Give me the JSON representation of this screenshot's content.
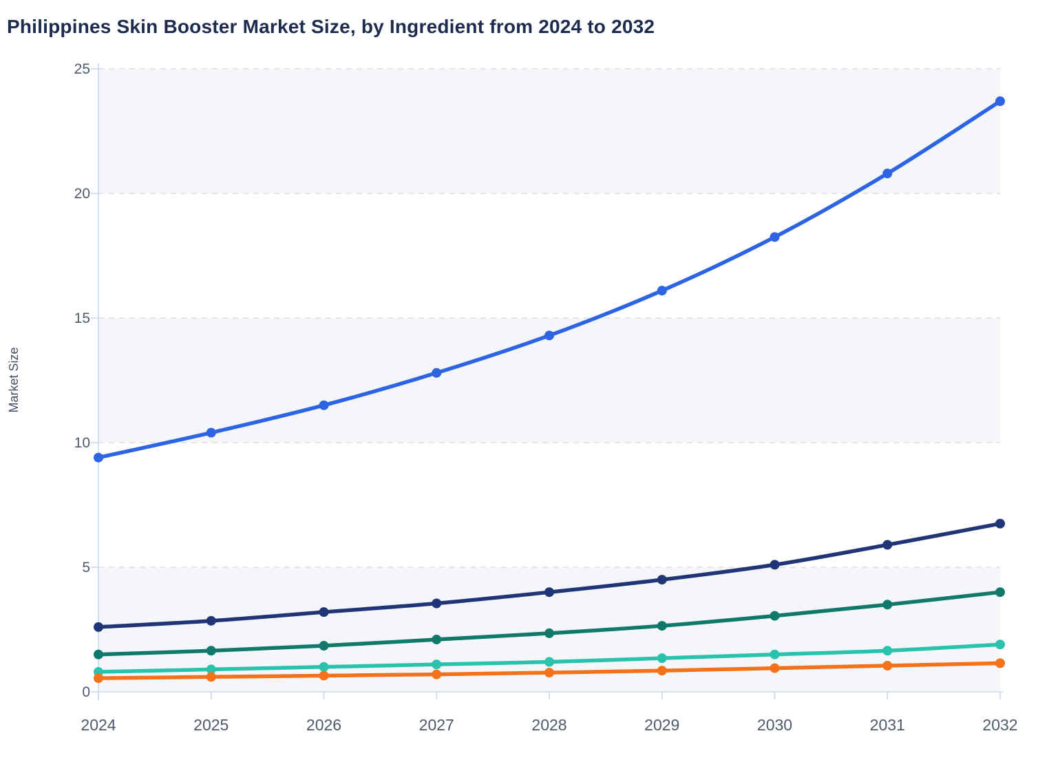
{
  "title": "Philippines Skin Booster Market Size, by Ingredient from 2024 to 2032",
  "colors": {
    "background": "#ffffff",
    "band": "#f5f6fa",
    "gridline": "#e3e5eb",
    "axis": "#ccd6f0",
    "title_text": "#1d2b4e",
    "axis_text": "#4e596b",
    "y_label_text": "#434e62"
  },
  "chart_data": {
    "type": "line",
    "title": "Philippines Skin Booster Market Size, by Ingredient from 2024 to 2032",
    "xlabel": "",
    "ylabel": "Market Size",
    "x": [
      "2024",
      "2025",
      "2026",
      "2027",
      "2028",
      "2029",
      "2030",
      "2031",
      "2032"
    ],
    "ylim": [
      0,
      25
    ],
    "y_ticks": [
      0,
      5,
      10,
      15,
      20,
      25
    ],
    "grid": "horizontal-dashed",
    "legend": "none",
    "shaded_bands": [
      [
        20,
        25
      ],
      [
        10,
        15
      ],
      [
        0,
        5
      ]
    ],
    "marker": "dot",
    "series": [
      {
        "name": "blue",
        "color": "#2c64e3",
        "values": [
          9.4,
          10.4,
          11.5,
          12.8,
          14.3,
          16.1,
          18.25,
          20.8,
          23.7
        ]
      },
      {
        "name": "navy",
        "color": "#1f3576",
        "values": [
          2.6,
          2.85,
          3.2,
          3.55,
          4.0,
          4.5,
          5.1,
          5.9,
          6.75
        ]
      },
      {
        "name": "teal",
        "color": "#10796b",
        "values": [
          1.5,
          1.65,
          1.85,
          2.1,
          2.35,
          2.65,
          3.05,
          3.5,
          4.0
        ]
      },
      {
        "name": "mint",
        "color": "#29c2ad",
        "values": [
          0.8,
          0.9,
          1.0,
          1.1,
          1.2,
          1.35,
          1.5,
          1.65,
          1.9
        ]
      },
      {
        "name": "orange",
        "color": "#f5711a",
        "values": [
          0.55,
          0.6,
          0.65,
          0.7,
          0.77,
          0.85,
          0.95,
          1.05,
          1.15
        ]
      }
    ]
  }
}
